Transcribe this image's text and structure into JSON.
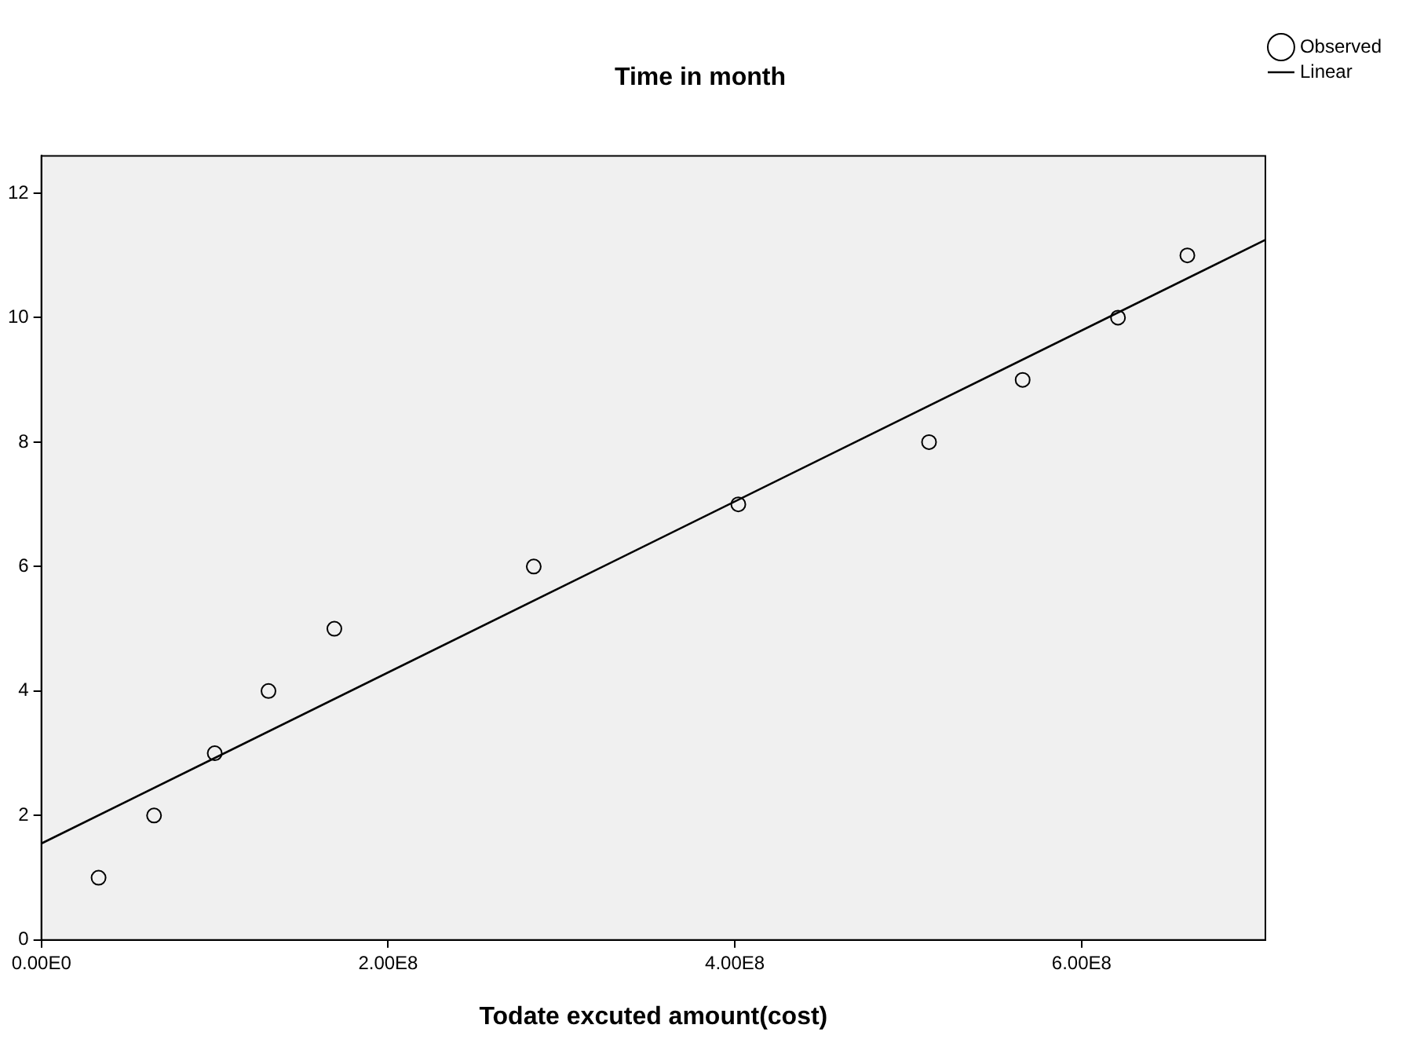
{
  "chart_data": {
    "type": "scatter",
    "title": "Time in month",
    "xlabel": "Todate excuted amount(cost)",
    "x": [
      33000000,
      65000000,
      100000000,
      131000000,
      169000000,
      284000000,
      402000000,
      512000000,
      566000000,
      621000000,
      661000000
    ],
    "series": [
      {
        "name": "Observed",
        "type": "scatter",
        "marker": "circle",
        "color": "#000000",
        "values": [
          1,
          2,
          3,
          4,
          5,
          6,
          7,
          8,
          9,
          10,
          11
        ]
      },
      {
        "name": "Linear",
        "type": "line",
        "marker": "none",
        "line_style": "solid",
        "color": "#000000",
        "x": [
          0,
          706000000
        ],
        "values": [
          1.55,
          11.25
        ]
      }
    ],
    "xlim": [
      0,
      706000000
    ],
    "xticks": [
      {
        "value": 0,
        "label": "0.00E0"
      },
      {
        "value": 200000000,
        "label": "2.00E8"
      },
      {
        "value": 400000000,
        "label": "4.00E8"
      },
      {
        "value": 600000000,
        "label": "6.00E8"
      }
    ],
    "ylim": [
      0,
      12.6
    ],
    "yticks": [
      0,
      2,
      4,
      6,
      8,
      10,
      12
    ],
    "grid": false,
    "legend": "top right"
  }
}
